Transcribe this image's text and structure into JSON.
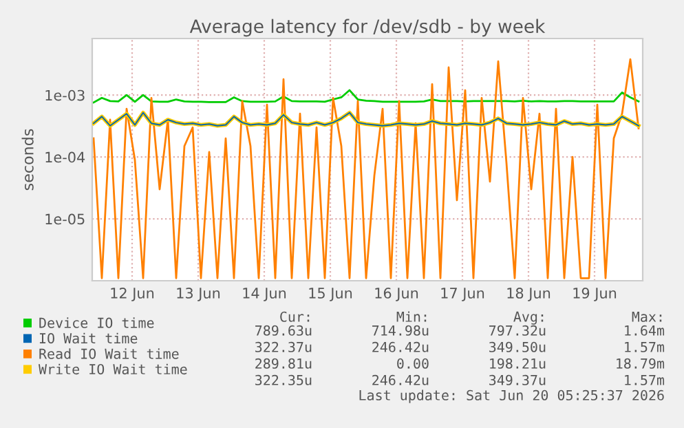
{
  "chart_data": {
    "type": "line",
    "title": "Average latency for /dev/sdb - by week",
    "ylabel": "seconds",
    "log": "y",
    "grid": true,
    "legend": "bottom left",
    "marker": "none",
    "line_style": "solid",
    "xlim": [
      "2026-06-11T21:30",
      "2026-06-20T05:30"
    ],
    "xticks": [
      {
        "value": "2026-06-12T12:00",
        "label": "12 Jun"
      },
      {
        "value": "2026-06-13T12:00",
        "label": "13 Jun"
      },
      {
        "value": "2026-06-14T12:00",
        "label": "14 Jun"
      },
      {
        "value": "2026-06-15T12:00",
        "label": "15 Jun"
      },
      {
        "value": "2026-06-16T12:00",
        "label": "16 Jun"
      },
      {
        "value": "2026-06-17T12:00",
        "label": "17 Jun"
      },
      {
        "value": "2026-06-18T12:00",
        "label": "18 Jun"
      },
      {
        "value": "2026-06-19T12:00",
        "label": "19 Jun"
      }
    ],
    "ylim": [
      1e-06,
      0.0082
    ],
    "yticks": [
      {
        "value": 1e-05,
        "label": "1e-05"
      },
      {
        "value": 0.0001,
        "label": "1e-04"
      },
      {
        "value": 0.001,
        "label": "1e-03"
      }
    ],
    "x": [
      "2026-06-11T22:00",
      "2026-06-12T01:00",
      "2026-06-12T04:00",
      "2026-06-12T07:00",
      "2026-06-12T10:00",
      "2026-06-12T13:00",
      "2026-06-12T16:00",
      "2026-06-12T19:00",
      "2026-06-12T22:00",
      "2026-06-13T01:00",
      "2026-06-13T04:00",
      "2026-06-13T07:00",
      "2026-06-13T10:00",
      "2026-06-13T13:00",
      "2026-06-13T16:00",
      "2026-06-13T19:00",
      "2026-06-13T22:00",
      "2026-06-14T01:00",
      "2026-06-14T04:00",
      "2026-06-14T07:00",
      "2026-06-14T10:00",
      "2026-06-14T13:00",
      "2026-06-14T16:00",
      "2026-06-14T19:00",
      "2026-06-14T22:00",
      "2026-06-15T01:00",
      "2026-06-15T04:00",
      "2026-06-15T07:00",
      "2026-06-15T10:00",
      "2026-06-15T13:00",
      "2026-06-15T16:00",
      "2026-06-15T19:00",
      "2026-06-15T22:00",
      "2026-06-16T01:00",
      "2026-06-16T04:00",
      "2026-06-16T07:00",
      "2026-06-16T10:00",
      "2026-06-16T13:00",
      "2026-06-16T16:00",
      "2026-06-16T19:00",
      "2026-06-16T22:00",
      "2026-06-17T01:00",
      "2026-06-17T04:00",
      "2026-06-17T07:00",
      "2026-06-17T10:00",
      "2026-06-17T13:00",
      "2026-06-17T16:00",
      "2026-06-17T19:00",
      "2026-06-17T22:00",
      "2026-06-18T01:00",
      "2026-06-18T04:00",
      "2026-06-18T07:00",
      "2026-06-18T10:00",
      "2026-06-18T13:00",
      "2026-06-18T16:00",
      "2026-06-18T19:00",
      "2026-06-18T22:00",
      "2026-06-19T01:00",
      "2026-06-19T04:00",
      "2026-06-19T07:00",
      "2026-06-19T10:00",
      "2026-06-19T13:00",
      "2026-06-19T16:00",
      "2026-06-19T19:00",
      "2026-06-19T22:00",
      "2026-06-20T01:00",
      "2026-06-20T04:00"
    ],
    "series": [
      {
        "name": "Device IO time",
        "color": "#00cc00",
        "values": [
          0.00076,
          0.0009,
          0.0008,
          0.00079,
          0.001,
          0.00078,
          0.001,
          0.00079,
          0.00078,
          0.00078,
          0.00085,
          0.00079,
          0.00078,
          0.00078,
          0.00077,
          0.00077,
          0.00077,
          0.00092,
          0.0008,
          0.00078,
          0.00078,
          0.00078,
          0.00079,
          0.00095,
          0.0008,
          0.00079,
          0.00079,
          0.00079,
          0.00078,
          0.00085,
          0.00092,
          0.0012,
          0.00085,
          0.00081,
          0.0008,
          0.00078,
          0.00078,
          0.00078,
          0.00078,
          0.00078,
          0.00079,
          0.00085,
          0.0008,
          0.0008,
          0.0008,
          0.00079,
          0.0008,
          0.0008,
          0.0008,
          0.0008,
          0.0008,
          0.00079,
          0.00081,
          0.00079,
          0.0008,
          0.00079,
          0.00079,
          0.0008,
          0.0008,
          0.00079,
          0.00079,
          0.00079,
          0.00079,
          0.00079,
          0.0011,
          0.00092,
          0.00079
        ]
      },
      {
        "name": "IO Wait time",
        "color": "#0066b3",
        "values": [
          0.00035,
          0.00045,
          0.00032,
          0.0004,
          0.0005,
          0.00033,
          0.00052,
          0.00035,
          0.00033,
          0.0004,
          0.00036,
          0.00034,
          0.00035,
          0.00033,
          0.00034,
          0.00032,
          0.00033,
          0.00045,
          0.00036,
          0.00033,
          0.00034,
          0.00033,
          0.00035,
          0.00048,
          0.00036,
          0.00034,
          0.00033,
          0.00036,
          0.00033,
          0.00036,
          0.00042,
          0.00052,
          0.00036,
          0.00034,
          0.00033,
          0.00032,
          0.00033,
          0.00035,
          0.00034,
          0.00033,
          0.00034,
          0.00038,
          0.00035,
          0.00034,
          0.00033,
          0.00035,
          0.00034,
          0.00033,
          0.00036,
          0.00042,
          0.00035,
          0.00034,
          0.00033,
          0.00034,
          0.00036,
          0.00034,
          0.00033,
          0.00038,
          0.00034,
          0.00035,
          0.00033,
          0.00034,
          0.00033,
          0.00034,
          0.00045,
          0.00038,
          0.00032
        ]
      },
      {
        "name": "Read IO Wait time",
        "color": "#ff8000",
        "values": [
          0.0002,
          1.1e-06,
          0.0004,
          1.1e-06,
          0.0006,
          9e-05,
          1.1e-06,
          0.0009,
          3e-05,
          0.0004,
          1.1e-06,
          0.00015,
          0.0003,
          1.1e-06,
          0.00012,
          1.1e-06,
          0.0002,
          1.1e-06,
          0.0008,
          0.00015,
          1.1e-06,
          0.0007,
          1.1e-06,
          0.0018,
          1.1e-06,
          0.0005,
          1.1e-06,
          0.0003,
          1.1e-06,
          0.0009,
          0.00015,
          1.1e-06,
          0.0008,
          1.1e-06,
          5e-05,
          0.0006,
          1.1e-06,
          0.0008,
          1.1e-06,
          0.00035,
          1.1e-06,
          0.0015,
          1.1e-06,
          0.0028,
          2e-05,
          0.0012,
          1.1e-06,
          0.0009,
          4e-05,
          0.0035,
          8e-05,
          1.1e-06,
          0.0009,
          3e-05,
          0.0005,
          1.1e-06,
          0.0006,
          1.1e-06,
          0.0001,
          1.1e-06,
          1.1e-06,
          0.0007,
          1.1e-06,
          0.0002,
          0.0005,
          0.0038,
          0.00029
        ]
      },
      {
        "name": "Write IO Wait time",
        "color": "#ffcc00",
        "values": [
          0.00035,
          0.00045,
          0.00032,
          0.0004,
          0.0005,
          0.00033,
          0.00052,
          0.00035,
          0.00033,
          0.0004,
          0.00036,
          0.00034,
          0.00035,
          0.00033,
          0.00034,
          0.00032,
          0.00033,
          0.00045,
          0.00036,
          0.00033,
          0.00034,
          0.00033,
          0.00035,
          0.00048,
          0.00036,
          0.00034,
          0.00033,
          0.00036,
          0.00033,
          0.00036,
          0.00042,
          0.00052,
          0.00036,
          0.00034,
          0.00033,
          0.00032,
          0.00033,
          0.00035,
          0.00034,
          0.00033,
          0.00034,
          0.00038,
          0.00035,
          0.00034,
          0.00033,
          0.00035,
          0.00034,
          0.00033,
          0.00036,
          0.00042,
          0.00035,
          0.00034,
          0.00033,
          0.00034,
          0.00036,
          0.00034,
          0.00033,
          0.00038,
          0.00034,
          0.00035,
          0.00033,
          0.00034,
          0.00033,
          0.00034,
          0.00045,
          0.00038,
          0.00032
        ]
      }
    ],
    "annotations": [
      "Cur:",
      "Min:",
      "Avg:",
      "Max:",
      "789.63u",
      "714.98u",
      "797.32u",
      "1.64m",
      "322.37u",
      "246.42u",
      "349.50u",
      "1.57m",
      "289.81u",
      "0.00",
      "198.21u",
      "18.79m",
      "322.35u",
      "246.42u",
      "349.37u",
      "1.57m",
      "Last update: Sat Jun 20 05:25:37 2026"
    ]
  }
}
